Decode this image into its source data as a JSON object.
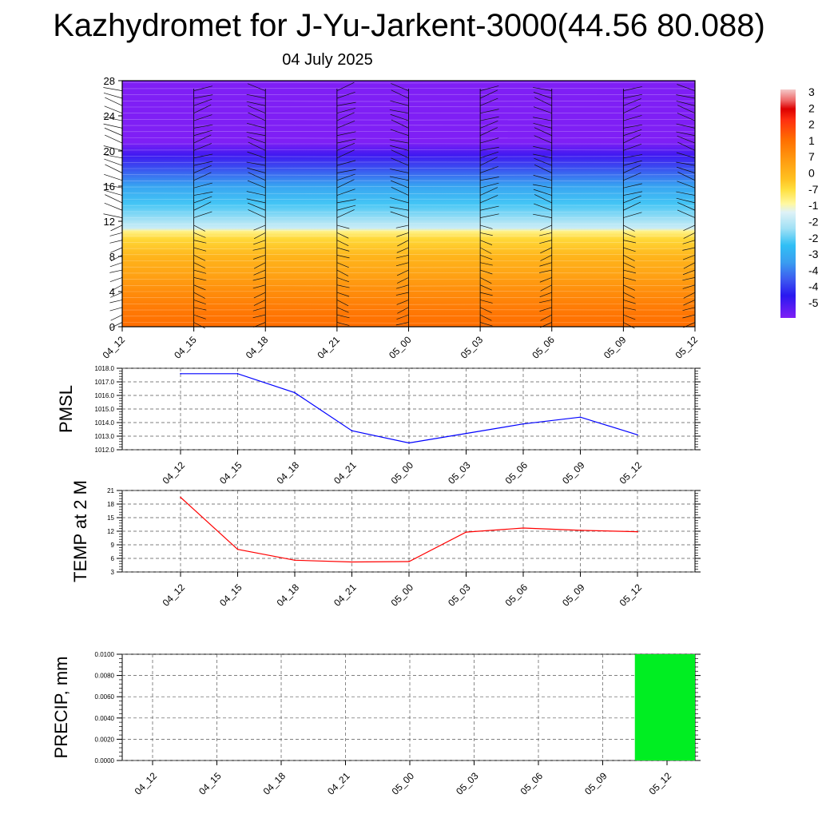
{
  "title": "Kazhydromet for J-Yu-Jarkent-3000(44.56 80.088)",
  "subtitle": "04 July 2025",
  "chart_data": [
    {
      "type": "heatmap",
      "name": "cross-section",
      "x_ticks": [
        "04_12",
        "04_15",
        "04_18",
        "04_21",
        "05_00",
        "05_03",
        "05_06",
        "05_09",
        "05_12"
      ],
      "y_ticks": [
        0,
        4,
        8,
        12,
        16,
        20,
        24,
        28
      ],
      "ylim": [
        0,
        28
      ],
      "colorbar_labels": [
        "3",
        "2",
        "2",
        "1",
        "7",
        "0",
        "-7",
        "-1",
        "-2",
        "-2",
        "-3",
        "-4",
        "-4",
        "-5"
      ],
      "colorscale": [
        {
          "v": -50,
          "c": "#7f1ff5"
        },
        {
          "v": -42,
          "c": "#2a18f0"
        },
        {
          "v": -36,
          "c": "#3d5cf0"
        },
        {
          "v": -30,
          "c": "#3a9ef0"
        },
        {
          "v": -24,
          "c": "#30bff5"
        },
        {
          "v": -18,
          "c": "#9fe0f5"
        },
        {
          "v": -12,
          "c": "#dff2f7"
        },
        {
          "v": -9,
          "c": "#fff8a0"
        },
        {
          "v": -4,
          "c": "#ffe040"
        },
        {
          "v": 0,
          "c": "#ffc020"
        },
        {
          "v": 7,
          "c": "#ff9910"
        },
        {
          "v": 14,
          "c": "#ff6e00"
        },
        {
          "v": 21,
          "c": "#ff3010"
        },
        {
          "v": 25,
          "c": "#dd0000"
        },
        {
          "v": 28,
          "c": "#ee6666"
        },
        {
          "v": 32,
          "c": "#f4c8c8"
        }
      ],
      "profile": [
        {
          "h": 0,
          "t": 14
        },
        {
          "h": 2,
          "t": 12
        },
        {
          "h": 4,
          "t": 9
        },
        {
          "h": 6,
          "t": 5
        },
        {
          "h": 8,
          "t": 2
        },
        {
          "h": 10,
          "t": -3
        },
        {
          "h": 10.9,
          "t": -8
        },
        {
          "h": 11.2,
          "t": -14
        },
        {
          "h": 12,
          "t": -17
        },
        {
          "h": 14,
          "t": -23
        },
        {
          "h": 16,
          "t": -29
        },
        {
          "h": 18,
          "t": -37
        },
        {
          "h": 19.5,
          "t": -44
        },
        {
          "h": 21,
          "t": -50
        },
        {
          "h": 28,
          "t": -52
        }
      ]
    },
    {
      "type": "line",
      "name": "PMSL",
      "ylabel": "PMSL",
      "categories": [
        "04_12",
        "04_15",
        "04_18",
        "04_21",
        "05_00",
        "05_03",
        "05_06",
        "05_09",
        "05_12"
      ],
      "values": [
        1017.6,
        1017.6,
        1016.2,
        1013.4,
        1012.5,
        1013.2,
        1013.9,
        1014.4,
        1013.1
      ],
      "ylim": [
        1012.0,
        1018.0
      ],
      "y_ticks": [
        "1012.0",
        "1013.0",
        "1014.0",
        "1015.0",
        "1016.0",
        "1017.0",
        "1018.0"
      ],
      "color": "#0000ff"
    },
    {
      "type": "line",
      "name": "TEMP at 2 M",
      "ylabel": "TEMP at 2 M",
      "categories": [
        "04_12",
        "04_15",
        "04_18",
        "04_21",
        "05_00",
        "05_03",
        "05_06",
        "05_09",
        "05_12"
      ],
      "values": [
        19.5,
        8.0,
        5.6,
        5.2,
        5.3,
        11.8,
        12.7,
        12.2,
        11.9
      ],
      "ylim": [
        3,
        21
      ],
      "y_ticks": [
        "3",
        "6",
        "9",
        "12",
        "15",
        "18",
        "21"
      ],
      "color": "#ff0000"
    },
    {
      "type": "bar",
      "name": "PRECIP",
      "ylabel": "PRECIP, mm",
      "categories": [
        "04_12",
        "04_15",
        "04_18",
        "04_21",
        "05_00",
        "05_03",
        "05_06",
        "05_09",
        "05_12"
      ],
      "values": [
        0,
        0,
        0,
        0,
        0,
        0,
        0,
        0,
        0.01
      ],
      "ylim": [
        0,
        0.01
      ],
      "y_ticks": [
        "0.0000",
        "0.0020",
        "0.0040",
        "0.0060",
        "0.0080",
        "0.0100"
      ],
      "color": "#00ee22"
    }
  ]
}
